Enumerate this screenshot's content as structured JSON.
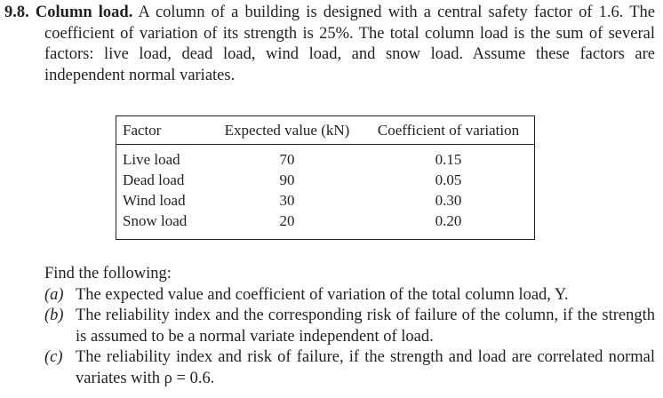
{
  "problem": {
    "number": "9.8.",
    "title": "Column load.",
    "text": "A column of a building is designed with a central safety factor of 1.6. The coefficient of variation of its strength is 25%. The total column load is the sum of several factors: live load, dead load, wind load, and snow load. Assume these factors are independent normal variates."
  },
  "table": {
    "header": [
      "Factor",
      "Expected value (kN)",
      "Coefficient of variation"
    ],
    "rows": [
      [
        "Live load",
        "70",
        "0.15"
      ],
      [
        "Dead load",
        "90",
        "0.05"
      ],
      [
        "Wind load",
        "30",
        "0.30"
      ],
      [
        "Snow load",
        "20",
        "0.20"
      ]
    ]
  },
  "questions": {
    "intro": "Find the following:",
    "items": [
      {
        "label": "(a)",
        "text": "The expected value and coefficient of variation of the total column load, Y."
      },
      {
        "label": "(b)",
        "text": "The reliability index and the corresponding risk of failure of the column, if the strength is assumed to be a normal variate independent of load."
      },
      {
        "label": "(c)",
        "text": "The reliability index and risk of failure, if the strength and load are correlated normal variates with ρ = 0.6."
      }
    ]
  }
}
